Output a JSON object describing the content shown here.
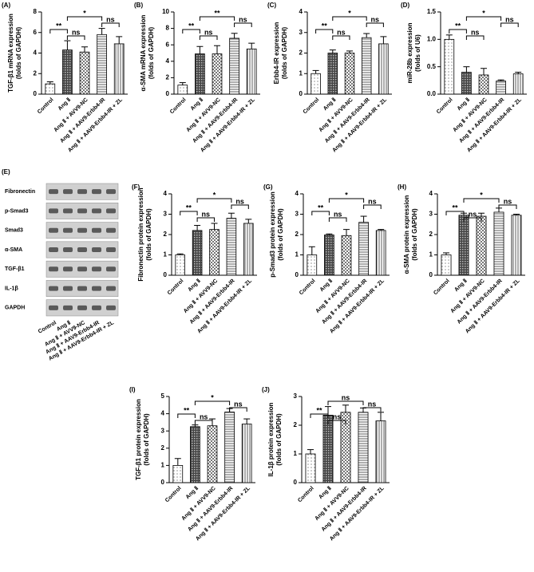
{
  "chart_data": [
    {
      "type": "bar",
      "label": "(A)",
      "ylabel": [
        "TGF-β1 mRNA expression",
        "(folds of GAPDH)"
      ],
      "categories": [
        "Control",
        "Ang Ⅱ",
        "Ang Ⅱ + AVV9-NC",
        "Ang Ⅱ + AAV9-Erbb4-IR",
        "Ang Ⅱ + AAV9-Erbb4-IR + ZL"
      ],
      "values": [
        1.0,
        4.3,
        4.1,
        5.8,
        4.9
      ],
      "errors": [
        0.2,
        0.9,
        0.5,
        0.6,
        0.7
      ],
      "ylim": [
        0,
        8
      ],
      "yticks": [
        0,
        2,
        4,
        6,
        8
      ],
      "annotations": [
        "**",
        "ns",
        "*",
        "ns"
      ]
    },
    {
      "type": "bar",
      "label": "(B)",
      "ylabel": [
        "α-SMA mRNA expression",
        "(folds of GAPDH)"
      ],
      "categories": [
        "Control",
        "Ang Ⅱ",
        "Ang Ⅱ + AVV9-NC",
        "Ang Ⅱ + AAV9-Erbb4-IR",
        "Ang Ⅱ + AAV9-Erbb4-IR + ZL"
      ],
      "values": [
        1.1,
        4.9,
        4.9,
        6.8,
        5.5
      ],
      "errors": [
        0.3,
        0.9,
        1.0,
        0.6,
        0.7
      ],
      "ylim": [
        0,
        10
      ],
      "yticks": [
        0,
        2,
        4,
        6,
        8,
        10
      ],
      "annotations": [
        "**",
        "ns",
        "**",
        "ns"
      ]
    },
    {
      "type": "bar",
      "label": "(C)",
      "ylabel": [
        "Erbb4-IR expression",
        "(folds of GAPDH)"
      ],
      "categories": [
        "Control",
        "Ang Ⅱ",
        "Ang Ⅱ + AVV9-NC",
        "Ang Ⅱ + AAV9-Erbb4-IR",
        "Ang Ⅱ + AAV9-Erbb4-IR + ZL"
      ],
      "values": [
        1.0,
        2.0,
        2.0,
        2.75,
        2.45
      ],
      "errors": [
        0.15,
        0.15,
        0.1,
        0.2,
        0.35
      ],
      "ylim": [
        0,
        4
      ],
      "yticks": [
        0,
        1,
        2,
        3,
        4
      ],
      "annotations": [
        "**",
        "ns",
        "*",
        "ns"
      ]
    },
    {
      "type": "bar",
      "label": "(D)",
      "ylabel": [
        "miR-28b expression",
        "(folds of U6)"
      ],
      "categories": [
        "Control",
        "Ang Ⅱ",
        "Ang Ⅱ + AVV9-NC",
        "Ang Ⅱ + AAV9-Erbb4-IR",
        "Ang Ⅱ + AAV9-Erbb4-IR + ZL"
      ],
      "values": [
        1.0,
        0.4,
        0.35,
        0.24,
        0.37
      ],
      "errors": [
        0.08,
        0.1,
        0.12,
        0.02,
        0.03
      ],
      "ylim": [
        0,
        1.5
      ],
      "yticks": [
        {
          "value": 0,
          "label": "0.0"
        },
        0.5,
        {
          "value": 1,
          "label": "1.0"
        },
        1.5
      ],
      "annotations": [
        "**",
        "ns",
        "*",
        "ns"
      ]
    },
    {
      "type": "blot",
      "label": "(E)",
      "rows": [
        "Fibronectin",
        "p-Smad3",
        "Smad3",
        "α-SMA",
        "TGF-β1",
        "IL-1β",
        "GAPDH"
      ],
      "categories": [
        "Control",
        "Ang Ⅱ",
        "Ang Ⅱ + AVV9-NC",
        "Ang Ⅱ + AAV9-Erbb4-IR",
        "Ang Ⅱ + AAV9-Erbb4-IR + ZL"
      ]
    },
    {
      "type": "bar",
      "label": "(F)",
      "ylabel": [
        "Fibronectin protein expression",
        "(folds of GAPDH)"
      ],
      "categories": [
        "Control",
        "Ang Ⅱ",
        "Ang Ⅱ + AVV9-NC",
        "Ang Ⅱ + AAV9-Erbb4-IR",
        "Ang Ⅱ + AAV9-Erbb4-IR + ZL"
      ],
      "values": [
        1.0,
        2.2,
        2.25,
        2.8,
        2.55
      ],
      "errors": [
        0.05,
        0.25,
        0.3,
        0.25,
        0.2
      ],
      "ylim": [
        0,
        4
      ],
      "yticks": [
        0,
        1,
        2,
        3,
        4
      ],
      "annotations": [
        "**",
        "ns",
        "*",
        "ns"
      ]
    },
    {
      "type": "bar",
      "label": "(G)",
      "ylabel": [
        "p-Smad3 protein expression",
        "(folds of GAPDH)"
      ],
      "categories": [
        "Control",
        "Ang Ⅱ",
        "Ang Ⅱ + AVV9-NC",
        "Ang Ⅱ + AAV9-Erbb4-IR",
        "Ang Ⅱ + AAV9-Erbb4-IR + ZL"
      ],
      "values": [
        1.0,
        1.98,
        1.95,
        2.6,
        2.2
      ],
      "errors": [
        0.4,
        0.05,
        0.3,
        0.3,
        0.05
      ],
      "ylim": [
        0,
        4
      ],
      "yticks": [
        0,
        1,
        2,
        3,
        4
      ],
      "annotations": [
        "**",
        "ns",
        "*",
        "ns"
      ]
    },
    {
      "type": "bar",
      "label": "(H)",
      "ylabel": [
        "α-SMA protein expression",
        "(folds of GAPDH)"
      ],
      "categories": [
        "Control",
        "Ang Ⅱ",
        "Ang Ⅱ + AVV9-NC",
        "Ang Ⅱ + AAV9-Erbb4-IR",
        "Ang Ⅱ + AAV9-Erbb4-IR + ZL"
      ],
      "values": [
        1.0,
        2.95,
        2.9,
        3.1,
        2.95
      ],
      "errors": [
        0.1,
        0.1,
        0.15,
        0.2,
        0.05
      ],
      "ylim": [
        0,
        4
      ],
      "yticks": [
        0,
        1,
        2,
        3,
        4
      ],
      "annotations": [
        "**",
        "ns",
        "*",
        "ns"
      ]
    },
    {
      "type": "bar",
      "label": "(I)",
      "ylabel": [
        "TGF-β1 protein expression",
        "(folds of GAPDH)"
      ],
      "categories": [
        "Control",
        "Ang Ⅱ",
        "Ang Ⅱ + AVV9-NC",
        "Ang Ⅱ + AAV9-Erbb4-IR",
        "Ang Ⅱ + AAV9-Erbb4-IR + ZL"
      ],
      "values": [
        1.0,
        3.25,
        3.3,
        4.1,
        3.4
      ],
      "errors": [
        0.4,
        0.1,
        0.4,
        0.2,
        0.3
      ],
      "ylim": [
        0,
        5
      ],
      "yticks": [
        0,
        1,
        2,
        3,
        4,
        5
      ],
      "annotations": [
        "**",
        "ns",
        "*",
        "ns"
      ]
    },
    {
      "type": "bar",
      "label": "(J)",
      "ylabel": [
        "IL-1β protein expression",
        "(folds of GAPDH)"
      ],
      "categories": [
        "Control",
        "Ang Ⅱ",
        "Ang Ⅱ + AVV9-NC",
        "Ang Ⅱ + AAV9-Erbb4-IR",
        "Ang Ⅱ + AAV9-Erbb4-IR + ZL"
      ],
      "values": [
        1.0,
        2.35,
        2.45,
        2.45,
        2.15
      ],
      "errors": [
        0.15,
        0.3,
        0.25,
        0.15,
        0.3
      ],
      "ylim": [
        0,
        3
      ],
      "yticks": [
        0,
        1,
        2,
        3
      ],
      "annotations": [
        "**",
        "ns",
        "ns",
        "ns"
      ]
    }
  ]
}
